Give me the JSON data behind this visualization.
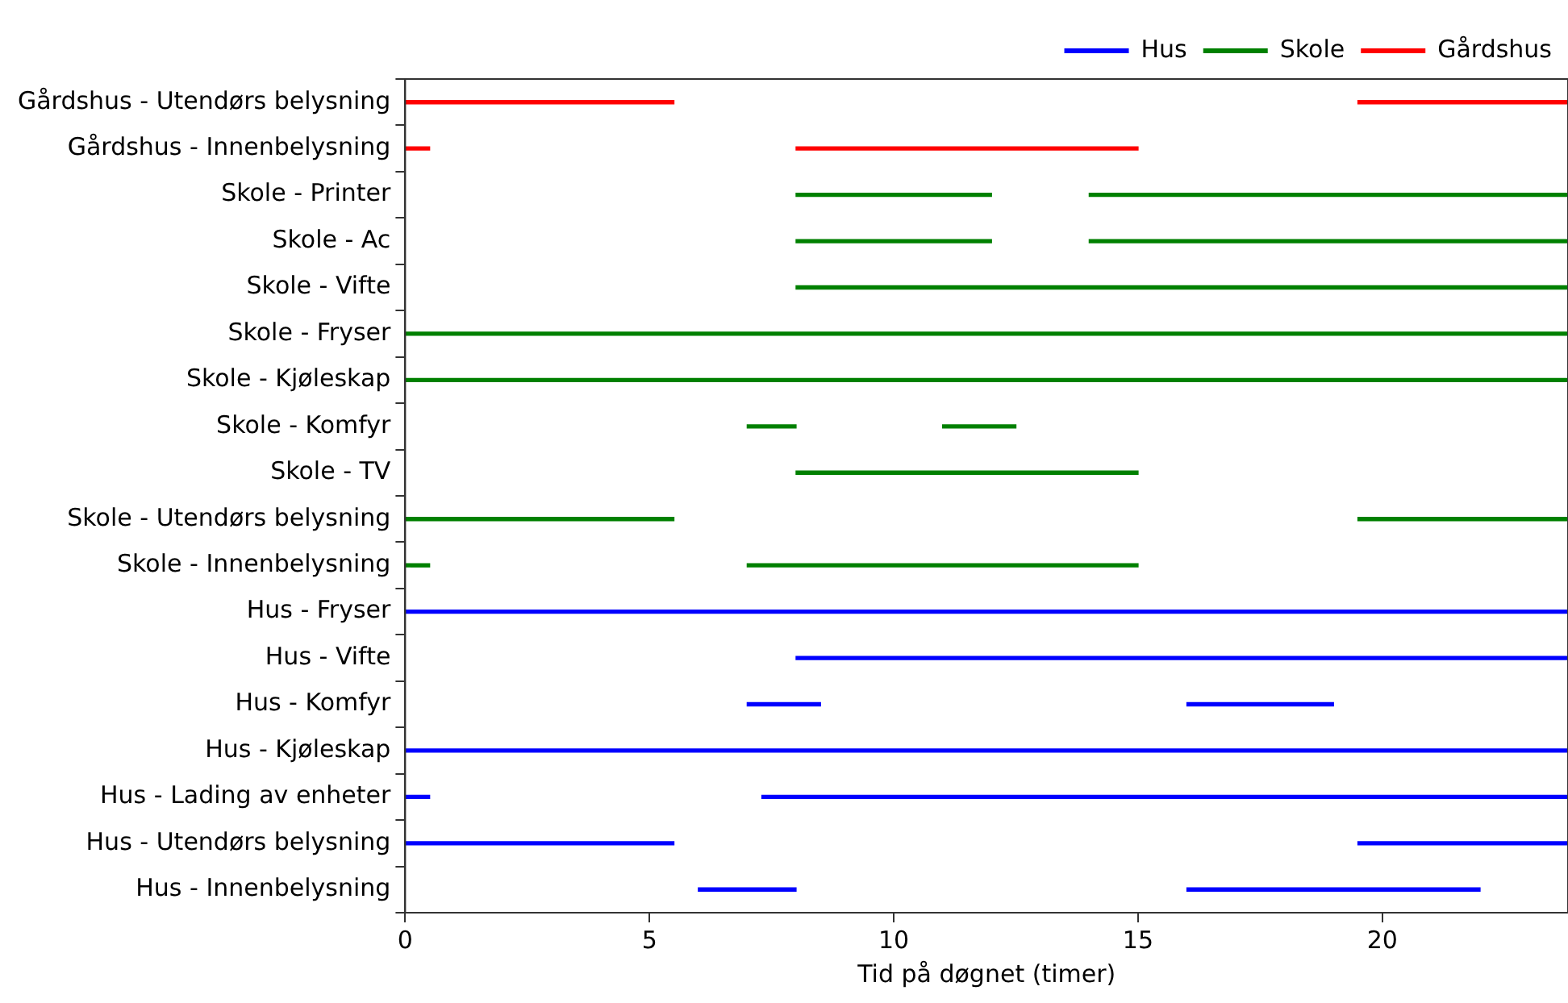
{
  "chart_data": {
    "type": "bar",
    "orientation": "horizontal",
    "xlabel": "Tid på døgnet (timer)",
    "categories": [
      "Gårdshus - Utendørs belysning",
      "Gårdshus - Innenbelysning",
      "Skole - Printer",
      "Skole - Ac",
      "Skole - Vifte",
      "Skole - Fryser",
      "Skole - Kjøleskap",
      "Skole - Komfyr",
      "Skole - TV",
      "Skole - Utendørs belysning",
      "Skole - Innenbelysning",
      "Hus - Fryser",
      "Hus - Vifte",
      "Hus - Komfyr",
      "Hus - Kjøleskap",
      "Hus - Lading av enheter",
      "Hus - Utendørs belysning",
      "Hus - Innenbelysning"
    ],
    "series": [
      {
        "name": "Hus",
        "color": "#0000ff",
        "base": [
          null,
          null,
          null,
          null,
          null,
          null,
          null,
          null,
          null,
          null,
          null,
          0,
          8,
          7,
          0,
          0,
          0,
          6
        ],
        "values": [
          null,
          null,
          null,
          null,
          null,
          null,
          null,
          null,
          null,
          null,
          null,
          23.8,
          15.8,
          1.5,
          23.8,
          0.5,
          5.5,
          2
        ]
      },
      {
        "name": "Skole",
        "color": "#008000",
        "base": [
          null,
          null,
          8,
          8,
          8,
          0,
          0,
          7,
          8,
          0,
          0,
          null,
          null,
          null,
          null,
          null,
          null,
          null
        ],
        "values": [
          null,
          null,
          4,
          4,
          15.8,
          23.8,
          23.8,
          1,
          7,
          5.5,
          0.5,
          null,
          null,
          null,
          null,
          null,
          null,
          null
        ]
      },
      {
        "name": "Gårdshus",
        "color": "#ff0000",
        "base": [
          0,
          0,
          null,
          null,
          null,
          null,
          null,
          null,
          null,
          null,
          null,
          null,
          null,
          null,
          null,
          null,
          null,
          null
        ],
        "values": [
          5.5,
          0.5,
          null,
          null,
          null,
          null,
          null,
          null,
          null,
          null,
          null,
          null,
          null,
          null,
          null,
          null,
          null,
          null
        ]
      },
      {
        "color": "#0000ff",
        "base": [
          null,
          null,
          null,
          null,
          null,
          null,
          null,
          null,
          null,
          null,
          null,
          null,
          null,
          16,
          null,
          7.3,
          19.5,
          16
        ],
        "values": [
          null,
          null,
          null,
          null,
          null,
          null,
          null,
          null,
          null,
          null,
          null,
          null,
          null,
          3,
          null,
          16.5,
          4.3,
          6
        ]
      },
      {
        "color": "#008000",
        "base": [
          null,
          null,
          14,
          14,
          null,
          null,
          null,
          11,
          null,
          19.5,
          7,
          null,
          null,
          null,
          null,
          null,
          null,
          null
        ],
        "values": [
          null,
          null,
          9.8,
          9.8,
          null,
          null,
          null,
          1.5,
          null,
          4.3,
          8,
          null,
          null,
          null,
          null,
          null,
          null,
          null
        ]
      },
      {
        "color": "#ff0000",
        "base": [
          19.5,
          8,
          null,
          null,
          null,
          null,
          null,
          null,
          null,
          null,
          null,
          null,
          null,
          null,
          null,
          null,
          null,
          null
        ],
        "values": [
          4.3,
          7,
          null,
          null,
          null,
          null,
          null,
          null,
          null,
          null,
          null,
          null,
          null,
          null,
          null,
          null,
          null,
          null
        ]
      }
    ],
    "xlim": [
      0,
      23.8
    ],
    "xticks": [
      0,
      5,
      10,
      15,
      20
    ],
    "grid": false,
    "legend": "top right"
  }
}
